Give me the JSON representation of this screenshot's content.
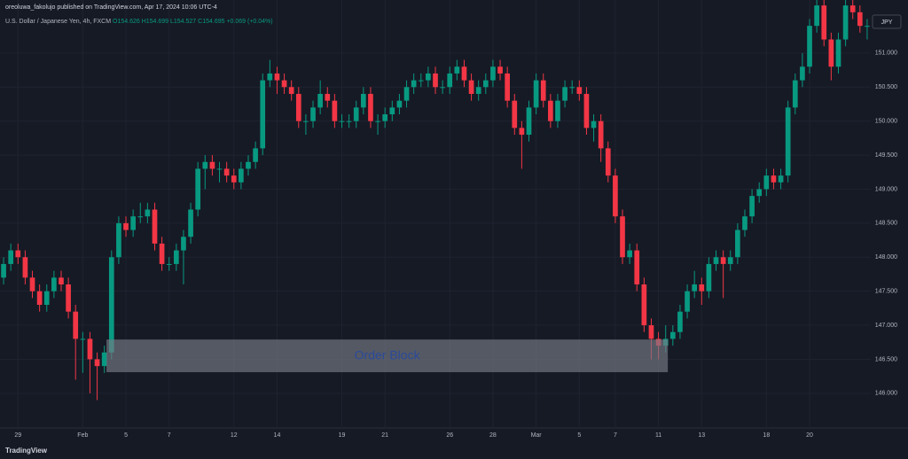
{
  "header": {
    "byline": "oreoluwa_fakolujo published on TradingView.com, Apr 17, 2024 10:06 UTC-4",
    "symbol": "U.S. Dollar / Japanese Yen, 4h, FXCM",
    "ohlc_text": "O154.626 H154.699 L154.527 C154.695 +0.069 (+0.04%)",
    "currency": "JPY"
  },
  "footer": {
    "brand": "TradingView"
  },
  "chart_data": {
    "type": "candlestick",
    "up_color": "#089981",
    "down_color": "#f23645",
    "grid": true,
    "ylim": [
      145.49,
      151.78
    ],
    "xlim": [
      -0.5,
      120.5
    ],
    "yticks": [
      {
        "value": 146,
        "label": "146.000"
      },
      {
        "value": 146.5,
        "label": "146.500"
      },
      {
        "value": 147,
        "label": "147.000"
      },
      {
        "value": 147.5,
        "label": "147.500"
      },
      {
        "value": 148,
        "label": "148.000"
      },
      {
        "value": 148.5,
        "label": "148.500"
      },
      {
        "value": 149,
        "label": "149.000"
      },
      {
        "value": 149.5,
        "label": "149.500"
      },
      {
        "value": 150,
        "label": "150.000"
      },
      {
        "value": 150.5,
        "label": "150.500"
      },
      {
        "value": 151,
        "label": "151.000"
      }
    ],
    "xticks": [
      {
        "value": 2,
        "label": "29"
      },
      {
        "value": 11,
        "label": "Feb"
      },
      {
        "value": 17,
        "label": "5"
      },
      {
        "value": 23,
        "label": "7"
      },
      {
        "value": 32,
        "label": "12"
      },
      {
        "value": 38,
        "label": "14"
      },
      {
        "value": 47,
        "label": "19"
      },
      {
        "value": 53,
        "label": "21"
      },
      {
        "value": 62,
        "label": "26"
      },
      {
        "value": 68,
        "label": "28"
      },
      {
        "value": 74,
        "label": "Mar"
      },
      {
        "value": 80,
        "label": "5"
      },
      {
        "value": 85,
        "label": "7"
      },
      {
        "value": 91,
        "label": "11"
      },
      {
        "value": 97,
        "label": "13"
      },
      {
        "value": 106,
        "label": "18"
      },
      {
        "value": 112,
        "label": "20"
      }
    ],
    "open": [
      147.7,
      147.9,
      148.1,
      148.0,
      147.7,
      147.5,
      147.3,
      147.5,
      147.7,
      147.6,
      147.2,
      146.8,
      146.8,
      146.5,
      146.4,
      146.6,
      148.0,
      148.5,
      148.4,
      148.6,
      148.6,
      148.7,
      148.2,
      147.9,
      147.9,
      148.1,
      148.3,
      148.7,
      149.3,
      149.4,
      149.3,
      149.3,
      149.2,
      149.1,
      149.3,
      149.4,
      149.6,
      150.6,
      150.7,
      150.6,
      150.5,
      150.4,
      150.0,
      150.0,
      150.2,
      150.4,
      150.3,
      150.0,
      150.0,
      150.0,
      150.2,
      150.4,
      150.0,
      150.0,
      150.1,
      150.2,
      150.3,
      150.5,
      150.6,
      150.6,
      150.7,
      150.5,
      150.5,
      150.7,
      150.8,
      150.6,
      150.4,
      150.5,
      150.6,
      150.8,
      150.7,
      150.3,
      149.9,
      149.8,
      150.2,
      150.6,
      150.3,
      150.0,
      150.3,
      150.5,
      150.5,
      150.4,
      149.9,
      150.0,
      149.6,
      149.2,
      148.6,
      148.0,
      148.1,
      147.6,
      147.0,
      146.8,
      146.7,
      146.8,
      146.9,
      147.2,
      147.5,
      147.6,
      147.5,
      147.9,
      148.0,
      147.9,
      148.0,
      148.4,
      148.6,
      148.9,
      149.0,
      149.2,
      149.1,
      149.2,
      150.2,
      150.6,
      150.8,
      151.4,
      151.7,
      151.2,
      150.8,
      151.2,
      151.7,
      151.6,
      151.4
    ],
    "high": [
      148.0,
      148.2,
      148.2,
      148.1,
      147.8,
      147.6,
      147.6,
      147.8,
      147.8,
      147.7,
      147.3,
      146.9,
      146.9,
      146.6,
      146.7,
      148.1,
      148.6,
      148.6,
      148.7,
      148.8,
      148.8,
      148.8,
      148.3,
      148.0,
      148.2,
      148.4,
      148.8,
      149.4,
      149.5,
      149.5,
      149.4,
      149.4,
      149.3,
      149.4,
      149.5,
      149.7,
      150.7,
      150.9,
      150.8,
      150.7,
      150.6,
      150.5,
      150.1,
      150.3,
      150.6,
      150.5,
      150.4,
      150.1,
      150.1,
      150.3,
      150.5,
      150.5,
      150.1,
      150.2,
      150.3,
      150.4,
      150.6,
      150.7,
      150.7,
      150.8,
      150.8,
      150.6,
      150.8,
      150.9,
      150.9,
      150.7,
      150.6,
      150.7,
      150.9,
      150.9,
      150.8,
      150.4,
      150.0,
      150.3,
      150.7,
      150.7,
      150.4,
      150.4,
      150.6,
      150.6,
      150.6,
      150.5,
      150.1,
      150.1,
      149.7,
      149.3,
      148.7,
      148.2,
      148.2,
      147.7,
      147.1,
      146.9,
      147.0,
      147.0,
      147.3,
      147.6,
      147.8,
      147.7,
      148.0,
      148.1,
      148.1,
      148.1,
      148.5,
      148.7,
      149.0,
      149.1,
      149.3,
      149.3,
      149.3,
      150.3,
      150.7,
      151.0,
      151.5,
      151.8,
      151.8,
      151.3,
      151.3,
      151.8,
      151.8,
      151.7,
      151.5
    ],
    "low": [
      147.6,
      147.8,
      147.9,
      147.6,
      147.4,
      147.2,
      147.2,
      147.4,
      147.5,
      147.1,
      146.2,
      146.3,
      146.0,
      145.9,
      146.3,
      146.5,
      147.9,
      148.3,
      148.3,
      148.5,
      148.5,
      148.1,
      147.8,
      147.8,
      147.8,
      147.6,
      148.2,
      148.6,
      149.0,
      149.2,
      149.1,
      149.1,
      149.0,
      149.0,
      149.2,
      149.3,
      149.5,
      150.5,
      150.4,
      150.4,
      150.3,
      149.9,
      149.8,
      149.9,
      150.1,
      150.2,
      149.9,
      149.9,
      149.9,
      149.9,
      150.1,
      149.9,
      149.8,
      149.9,
      150.0,
      150.1,
      150.2,
      150.4,
      150.5,
      150.5,
      150.4,
      150.4,
      150.4,
      150.6,
      150.5,
      150.3,
      150.3,
      150.4,
      150.5,
      150.6,
      150.2,
      149.8,
      149.3,
      149.7,
      150.1,
      150.2,
      149.9,
      149.9,
      150.2,
      150.4,
      150.3,
      149.8,
      149.7,
      149.4,
      149.1,
      148.5,
      147.9,
      147.9,
      147.5,
      146.9,
      146.5,
      146.5,
      146.6,
      146.7,
      146.8,
      147.1,
      147.4,
      147.3,
      147.4,
      147.8,
      147.4,
      147.8,
      147.9,
      148.3,
      148.5,
      148.8,
      148.9,
      149.0,
      149.0,
      149.1,
      150.1,
      150.5,
      150.7,
      151.3,
      151.1,
      150.6,
      150.7,
      151.1,
      151.5,
      151.3,
      151.2
    ],
    "close": [
      147.9,
      148.1,
      148.0,
      147.7,
      147.5,
      147.3,
      147.5,
      147.7,
      147.6,
      147.2,
      146.8,
      146.8,
      146.5,
      146.4,
      146.6,
      148.0,
      148.5,
      148.4,
      148.6,
      148.6,
      148.7,
      148.2,
      147.9,
      147.9,
      148.1,
      148.3,
      148.7,
      149.3,
      149.4,
      149.3,
      149.3,
      149.2,
      149.1,
      149.3,
      149.4,
      149.6,
      150.6,
      150.7,
      150.6,
      150.5,
      150.4,
      150.0,
      150.0,
      150.2,
      150.4,
      150.3,
      150.0,
      150.0,
      150.0,
      150.2,
      150.4,
      150.0,
      150.0,
      150.1,
      150.2,
      150.3,
      150.5,
      150.6,
      150.6,
      150.7,
      150.5,
      150.5,
      150.7,
      150.8,
      150.6,
      150.4,
      150.5,
      150.6,
      150.8,
      150.7,
      150.3,
      149.9,
      149.8,
      150.2,
      150.6,
      150.3,
      150.0,
      150.3,
      150.5,
      150.5,
      150.4,
      149.9,
      150.0,
      149.6,
      149.2,
      148.6,
      148.0,
      148.1,
      147.6,
      147.0,
      146.8,
      146.7,
      146.8,
      146.9,
      147.2,
      147.5,
      147.6,
      147.5,
      147.9,
      148.0,
      147.9,
      148.0,
      148.4,
      148.6,
      148.9,
      149.0,
      149.2,
      149.1,
      149.2,
      150.2,
      150.6,
      150.8,
      151.4,
      151.7,
      151.2,
      150.8,
      151.2,
      151.7,
      151.6,
      151.4,
      151.4
    ],
    "zone": {
      "label": "Order Block",
      "from": 146.31,
      "to": 146.79,
      "x_from": 14.3,
      "x_to": 92.3,
      "color": "#787b86",
      "label_color": "#2a4a9a"
    }
  }
}
